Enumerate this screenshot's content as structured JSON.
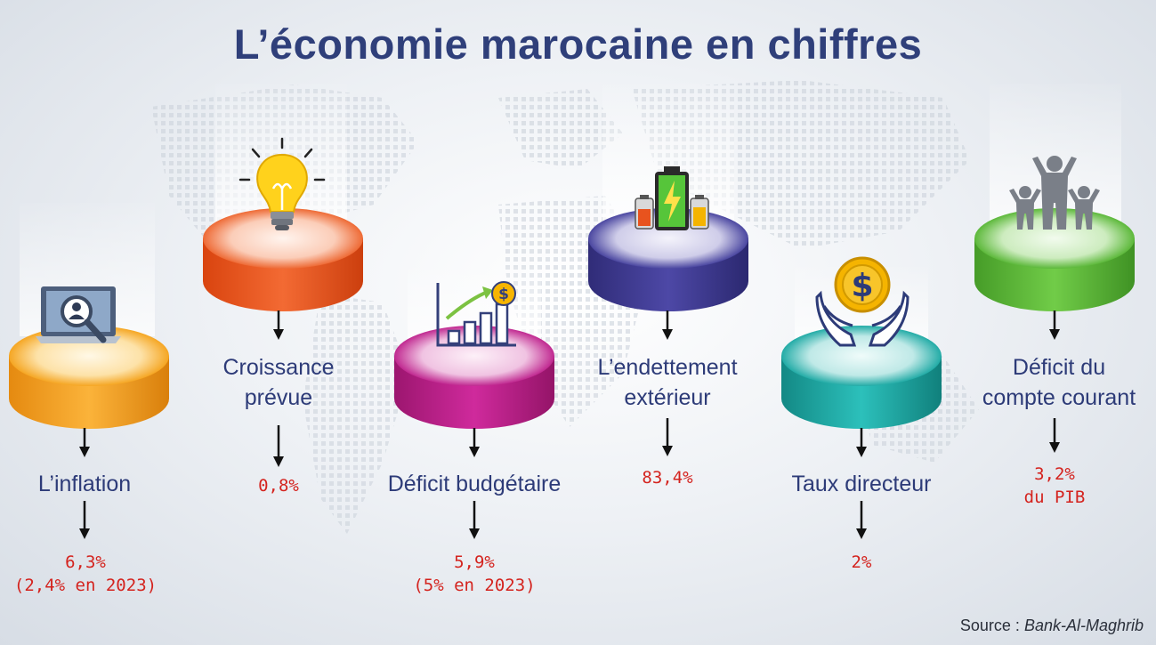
{
  "title": "L’économie marocaine en chiffres",
  "items": [
    {
      "label_lines": [
        "L’inflation"
      ],
      "value_lines": [
        "6,3%",
        "(2,4% en 2023)"
      ],
      "disk_color": "#f39a1b",
      "icon": "laptop-magnifier-icon"
    },
    {
      "label_lines": [
        "Croissance",
        "prévue"
      ],
      "value_lines": [
        "0,8%"
      ],
      "disk_color": "#e8531e",
      "icon": "light-bulb-icon"
    },
    {
      "label_lines": [
        "Déficit budgétaire"
      ],
      "value_lines": [
        "5,9%",
        "(5% en 2023)"
      ],
      "disk_color": "#b61f8a",
      "icon": "growth-chart-dollar-icon"
    },
    {
      "label_lines": [
        "L’endettement",
        "extérieur"
      ],
      "value_lines": [
        "83,4%"
      ],
      "disk_color": "#3e3a8e",
      "icon": "batteries-icon"
    },
    {
      "label_lines": [
        "Taux directeur"
      ],
      "value_lines": [
        "2%"
      ],
      "disk_color": "#1fa6a3",
      "icon": "hands-dollar-coin-icon"
    },
    {
      "label_lines": [
        "Déficit du",
        "compte courant"
      ],
      "value_lines": [
        "3,2%",
        "du PIB"
      ],
      "disk_color": "#5cb83a",
      "icon": "people-family-icon"
    }
  ],
  "source": {
    "prefix": "Source : ",
    "name": "Bank-Al-Maghrib"
  },
  "colors": {
    "title": "#2f3f7a",
    "label": "#2d3b78",
    "value": "#d4231e"
  }
}
